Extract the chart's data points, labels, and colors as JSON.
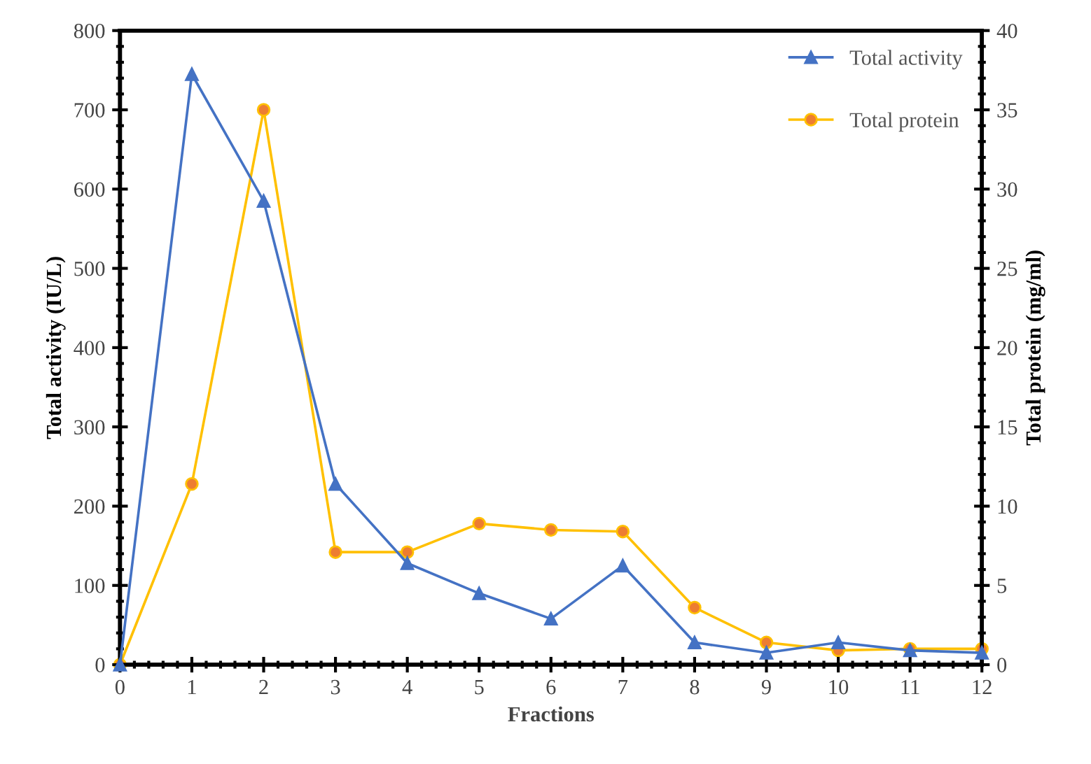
{
  "chart_data": {
    "type": "line",
    "xlabel": "Fractions",
    "ylabel": "Total activity (IU/L)",
    "y2label": "Total protein (mg/ml)",
    "x": [
      0,
      1,
      2,
      3,
      4,
      5,
      6,
      7,
      8,
      9,
      10,
      11,
      12
    ],
    "series": [
      {
        "name": "Total activity",
        "color": "#4472c4",
        "marker": "triangle",
        "values": [
          0,
          745,
          585,
          228,
          128,
          90,
          58,
          125,
          28,
          15,
          28,
          18,
          15
        ]
      },
      {
        "name": "Total protein",
        "color": "#ffc000",
        "marker": "circle",
        "axis": "y2",
        "values": [
          0,
          11.4,
          35,
          7.1,
          7.1,
          8.9,
          8.5,
          8.4,
          3.6,
          1.4,
          0.9,
          1.0,
          1.0
        ]
      }
    ],
    "xlim": [
      0,
      12
    ],
    "xticks": [
      0,
      1,
      2,
      3,
      4,
      5,
      6,
      7,
      8,
      9,
      10,
      11,
      12
    ],
    "ylim": [
      0,
      800
    ],
    "yticks": [
      0,
      100,
      200,
      300,
      400,
      500,
      600,
      700,
      800
    ],
    "y2lim": [
      0,
      40
    ],
    "y2ticks": [
      0,
      5,
      10,
      15,
      20,
      25,
      30,
      35,
      40
    ],
    "legend": "top right",
    "grid": false
  }
}
